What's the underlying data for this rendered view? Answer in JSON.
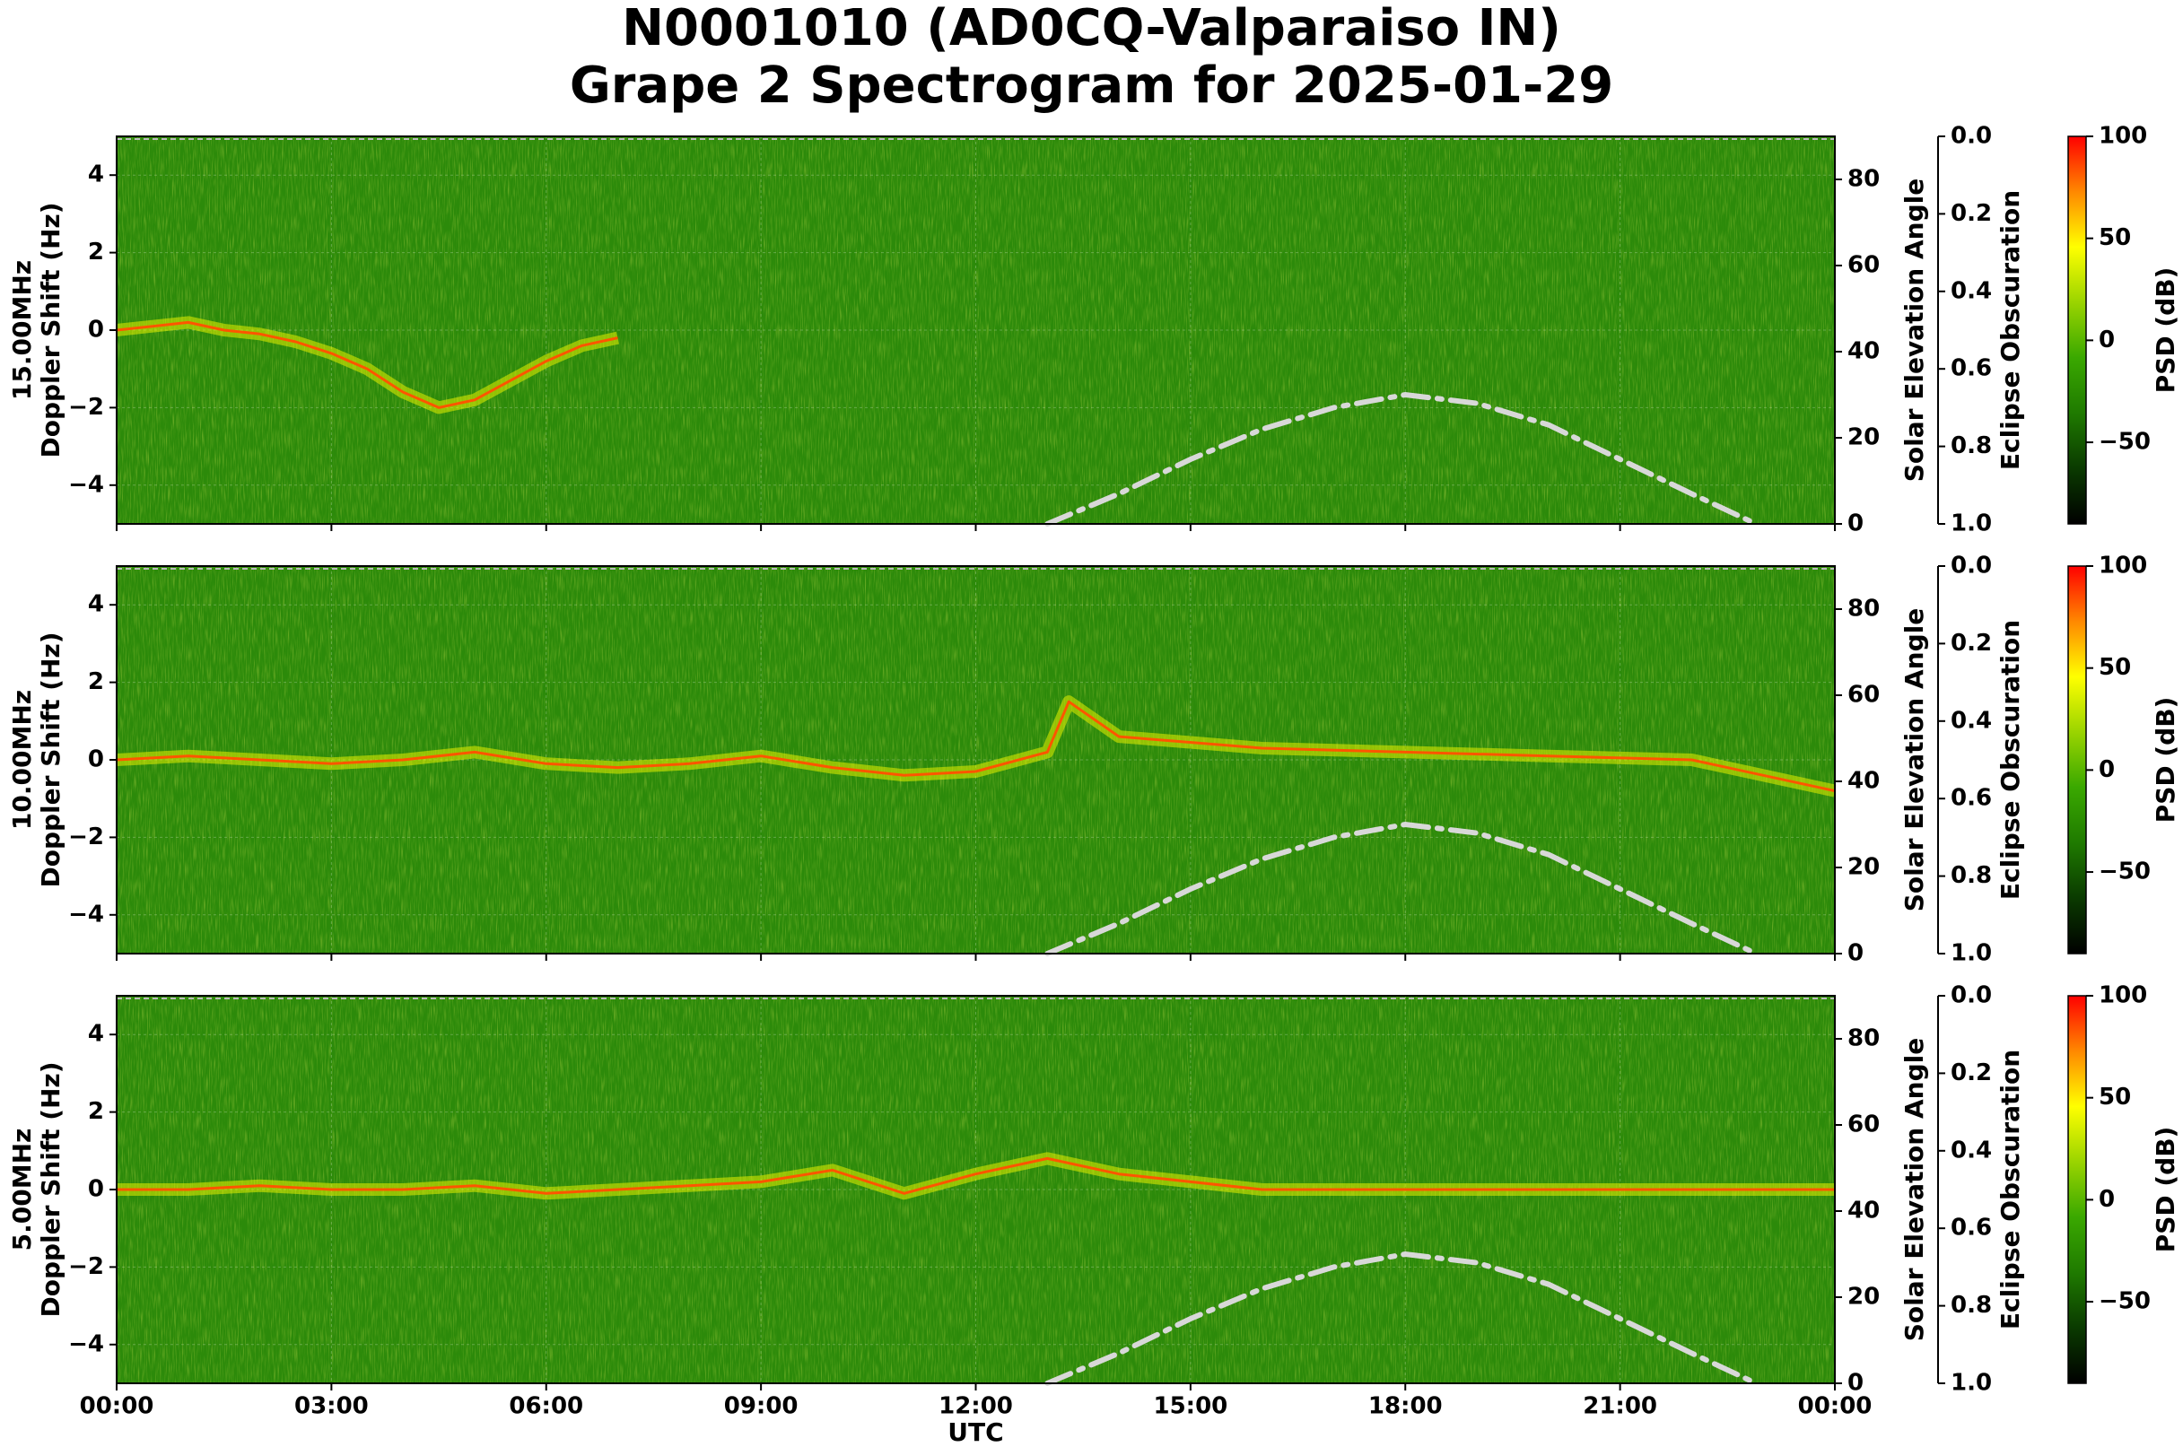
{
  "title": {
    "line1": "N0001010 (AD0CQ-Valparaiso IN)",
    "line2": "Grape 2 Spectrogram for 2025-01-29"
  },
  "x_axis": {
    "label": "UTC",
    "ticks": [
      "00:00",
      "03:00",
      "06:00",
      "09:00",
      "12:00",
      "15:00",
      "18:00",
      "21:00",
      "00:00"
    ]
  },
  "right_axis_labels": {
    "elevation": "Solar Elevation Angle",
    "obscuration": "Eclipse Obscuration",
    "colorbar": "PSD (dB)"
  },
  "colors": {
    "background_green": "#2c8a0a",
    "elevation_curve": "#d8d8d8",
    "cmap": [
      "#000000",
      "#0a3a00",
      "#1f7a00",
      "#3aa800",
      "#9ad400",
      "#ffff00",
      "#ff8800",
      "#ff0000"
    ]
  },
  "chart_data": [
    {
      "type": "heatmap",
      "panel": "15.00MHz",
      "ylabel_line1": "15.00MHz",
      "ylabel_line2": "Doppler Shift (Hz)",
      "x_range_hours": [
        0,
        24
      ],
      "ylim": [
        -5,
        5
      ],
      "yticks": [
        "4",
        "2",
        "0",
        "−2",
        "−4"
      ],
      "elevation_axis": {
        "ylim": [
          0,
          90
        ],
        "ticks": [
          "80",
          "60",
          "40",
          "20",
          "0"
        ]
      },
      "obscuration_axis": {
        "ylim": [
          0.0,
          1.0
        ],
        "ticks": [
          "0.0",
          "0.2",
          "0.4",
          "0.6",
          "0.8",
          "1.0"
        ]
      },
      "colorbar": {
        "range_db": [
          -90,
          100
        ],
        "ticks": [
          "100",
          "50",
          "0",
          "−50"
        ]
      },
      "solar_elevation_curve": {
        "x_hours": [
          13.0,
          14.0,
          15.0,
          16.0,
          17.0,
          18.0,
          19.0,
          20.0,
          21.0,
          22.0,
          22.9
        ],
        "elevation_deg": [
          0,
          7,
          15,
          22,
          27,
          30,
          28,
          23,
          15,
          7,
          0
        ]
      },
      "doppler_trace": {
        "x_hours": [
          0,
          0.5,
          1.0,
          1.5,
          2.0,
          2.5,
          3.0,
          3.5,
          4.0,
          4.5,
          5.0,
          5.5,
          6.0,
          6.5,
          7.0
        ],
        "shift_hz": [
          0.0,
          0.1,
          0.2,
          0.0,
          -0.1,
          -0.3,
          -0.6,
          -1.0,
          -1.6,
          -2.0,
          -1.8,
          -1.3,
          -0.8,
          -0.4,
          -0.2
        ]
      }
    },
    {
      "type": "heatmap",
      "panel": "10.00MHz",
      "ylabel_line1": "10.00MHz",
      "ylabel_line2": "Doppler Shift (Hz)",
      "x_range_hours": [
        0,
        24
      ],
      "ylim": [
        -5,
        5
      ],
      "yticks": [
        "4",
        "2",
        "0",
        "−2",
        "−4"
      ],
      "elevation_axis": {
        "ylim": [
          0,
          90
        ],
        "ticks": [
          "80",
          "60",
          "40",
          "20",
          "0"
        ]
      },
      "obscuration_axis": {
        "ylim": [
          0.0,
          1.0
        ],
        "ticks": [
          "0.0",
          "0.2",
          "0.4",
          "0.6",
          "0.8",
          "1.0"
        ]
      },
      "colorbar": {
        "range_db": [
          -90,
          100
        ],
        "ticks": [
          "100",
          "50",
          "0",
          "−50"
        ]
      },
      "solar_elevation_curve": {
        "x_hours": [
          13.0,
          14.0,
          15.0,
          16.0,
          17.0,
          18.0,
          19.0,
          20.0,
          21.0,
          22.0,
          22.9
        ],
        "elevation_deg": [
          0,
          7,
          15,
          22,
          27,
          30,
          28,
          23,
          15,
          7,
          0
        ]
      },
      "doppler_trace": {
        "x_hours": [
          0,
          1,
          2,
          3,
          4,
          5,
          6,
          7,
          8,
          9,
          10,
          11,
          12,
          13,
          13.3,
          14,
          16,
          18,
          20,
          22,
          24
        ],
        "shift_hz": [
          0.0,
          0.1,
          0.0,
          -0.1,
          0.0,
          0.2,
          -0.1,
          -0.2,
          -0.1,
          0.1,
          -0.2,
          -0.4,
          -0.3,
          0.2,
          1.5,
          0.6,
          0.3,
          0.2,
          0.1,
          0.0,
          -0.8
        ]
      }
    },
    {
      "type": "heatmap",
      "panel": "5.00MHz",
      "ylabel_line1": "5.00MHz",
      "ylabel_line2": "Doppler Shift (Hz)",
      "x_range_hours": [
        0,
        24
      ],
      "ylim": [
        -5,
        5
      ],
      "yticks": [
        "4",
        "2",
        "0",
        "−2",
        "−4"
      ],
      "elevation_axis": {
        "ylim": [
          0,
          90
        ],
        "ticks": [
          "80",
          "60",
          "40",
          "20",
          "0"
        ]
      },
      "obscuration_axis": {
        "ylim": [
          0.0,
          1.0
        ],
        "ticks": [
          "0.0",
          "0.2",
          "0.4",
          "0.6",
          "0.8",
          "1.0"
        ]
      },
      "colorbar": {
        "range_db": [
          -90,
          100
        ],
        "ticks": [
          "100",
          "50",
          "0",
          "−50"
        ]
      },
      "solar_elevation_curve": {
        "x_hours": [
          13.0,
          14.0,
          15.0,
          16.0,
          17.0,
          18.0,
          19.0,
          20.0,
          21.0,
          22.0,
          22.9
        ],
        "elevation_deg": [
          0,
          7,
          15,
          22,
          27,
          30,
          28,
          23,
          15,
          7,
          0
        ]
      },
      "doppler_trace": {
        "x_hours": [
          0,
          1,
          2,
          3,
          4,
          5,
          6,
          7,
          8,
          9,
          10,
          11,
          12,
          13,
          14,
          16,
          18,
          20,
          22,
          24
        ],
        "shift_hz": [
          0.0,
          0.0,
          0.1,
          0.0,
          0.0,
          0.1,
          -0.1,
          0.0,
          0.1,
          0.2,
          0.5,
          -0.1,
          0.4,
          0.8,
          0.4,
          0.0,
          0.0,
          0.0,
          0.0,
          0.0
        ]
      }
    }
  ]
}
